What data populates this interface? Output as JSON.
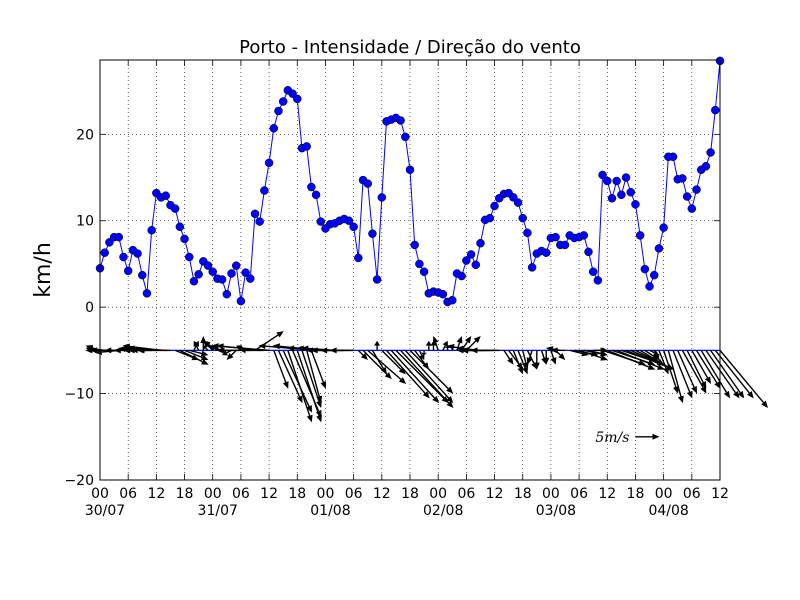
{
  "chart_data": {
    "type": "line",
    "title": "Porto - Intensidade / Direção do vento",
    "y_label": "km/h",
    "xlim": [
      0,
      132
    ],
    "ylim": [
      -20,
      28.6
    ],
    "yticks": [
      {
        "value": -20,
        "label": "−20"
      },
      {
        "value": -10,
        "label": "−10"
      },
      0,
      10,
      20
    ],
    "xticks": [
      {
        "value": 0,
        "label": "00"
      },
      {
        "value": 6,
        "label": "06"
      },
      {
        "value": 12,
        "label": "12"
      },
      {
        "value": 18,
        "label": "18"
      },
      {
        "value": 24,
        "label": "00"
      },
      {
        "value": 30,
        "label": "06"
      },
      {
        "value": 36,
        "label": "12"
      },
      {
        "value": 42,
        "label": "18"
      },
      {
        "value": 48,
        "label": "00"
      },
      {
        "value": 54,
        "label": "06"
      },
      {
        "value": 60,
        "label": "12"
      },
      {
        "value": 66,
        "label": "18"
      },
      {
        "value": 72,
        "label": "00"
      },
      {
        "value": 78,
        "label": "06"
      },
      {
        "value": 84,
        "label": "12"
      },
      {
        "value": 90,
        "label": "18"
      },
      {
        "value": 96,
        "label": "00"
      },
      {
        "value": 102,
        "label": "06"
      },
      {
        "value": 108,
        "label": "12"
      },
      {
        "value": 114,
        "label": "18"
      },
      {
        "value": 120,
        "label": "00"
      },
      {
        "value": 126,
        "label": "06"
      },
      {
        "value": 132,
        "label": "12"
      }
    ],
    "xtick_dates": [
      {
        "value": 0,
        "label": "30/07"
      },
      {
        "value": 24,
        "label": "31/07"
      },
      {
        "value": 48,
        "label": "01/08"
      },
      {
        "value": 72,
        "label": "02/08"
      },
      {
        "value": 96,
        "label": "03/08"
      },
      {
        "value": 120,
        "label": "04/08"
      }
    ],
    "grid": true,
    "series": [
      {
        "name": "Intensidade",
        "color": "#0000ff",
        "x": [
          0,
          1,
          2,
          3,
          4,
          5,
          6,
          7,
          8,
          9,
          10,
          11,
          12,
          13,
          14,
          15,
          16,
          17,
          18,
          19,
          20,
          21,
          22,
          23,
          24,
          25,
          26,
          27,
          28,
          29,
          30,
          31,
          32,
          33,
          34,
          35,
          36,
          37,
          38,
          39,
          40,
          41,
          42,
          43,
          44,
          45,
          46,
          47,
          48,
          49,
          50,
          51,
          52,
          53,
          54,
          55,
          56,
          57,
          58,
          59,
          60,
          61,
          62,
          63,
          64,
          65,
          66,
          67,
          68,
          69,
          70,
          71,
          72,
          73,
          74,
          75,
          76,
          77,
          78,
          79,
          80,
          81,
          82,
          83,
          84,
          85,
          86,
          87,
          88,
          89,
          90,
          91,
          92,
          93,
          94,
          95,
          96,
          97,
          98,
          99,
          100,
          101,
          102,
          103,
          104,
          105,
          106,
          107,
          108,
          109,
          110,
          111,
          112,
          113,
          114,
          115,
          116,
          117,
          118,
          119,
          120,
          121,
          122,
          123,
          124,
          125,
          126,
          127,
          128,
          129,
          130,
          131,
          132
        ],
        "values": [
          4.5,
          6.3,
          7.5,
          8.1,
          8.1,
          5.8,
          4.2,
          6.6,
          6.2,
          3.7,
          1.6,
          8.9,
          13.2,
          12.7,
          12.9,
          11.8,
          11.4,
          9.3,
          7.9,
          5.8,
          3.0,
          3.8,
          5.3,
          4.8,
          4.1,
          3.3,
          3.2,
          1.5,
          3.9,
          4.8,
          0.7,
          4.0,
          3.3,
          10.8,
          9.9,
          13.5,
          16.7,
          20.7,
          22.7,
          23.8,
          25.1,
          24.7,
          24.1,
          18.4,
          18.6,
          13.9,
          13.0,
          9.9,
          9.1,
          9.6,
          9.7,
          10.0,
          10.2,
          10.0,
          9.3,
          5.7,
          14.7,
          14.3,
          8.5,
          3.2,
          12.7,
          21.5,
          21.7,
          21.9,
          21.6,
          19.7,
          15.9,
          7.2,
          5.0,
          4.1,
          1.6,
          1.8,
          1.7,
          1.5,
          0.6,
          0.8,
          3.9,
          3.6,
          5.4,
          6.1,
          4.9,
          7.4,
          10.1,
          10.3,
          11.7,
          12.6,
          13.1,
          13.2,
          12.7,
          12.1,
          10.3,
          8.6,
          4.6,
          6.2,
          6.5,
          6.3,
          8.0,
          8.1,
          7.2,
          7.2,
          8.3,
          8.0,
          8.1,
          8.3,
          6.4,
          4.1,
          3.1,
          15.3,
          14.6,
          12.6,
          14.6,
          13.0,
          15.0,
          13.3,
          11.9,
          8.3,
          4.4,
          2.4,
          3.7,
          6.8,
          9.2,
          17.4,
          17.4,
          14.8,
          14.9,
          12.8,
          11.4,
          13.6,
          15.9,
          16.3,
          17.9,
          22.8,
          28.5
        ]
      }
    ],
    "wind": {
      "type": "quiver",
      "base": -5,
      "color": "#000000",
      "baseline_color": "#0000ff",
      "u": [
        -3,
        -4,
        -5,
        -5,
        -5,
        -4,
        -3,
        -3,
        -3,
        -2,
        -1,
        -5,
        -7,
        -8,
        -8,
        -7,
        5,
        6,
        5,
        4,
        1,
        -1,
        0,
        -1,
        -2,
        -3,
        -3,
        -1,
        -2,
        -2,
        0,
        -2,
        -2,
        6,
        -9,
        -10,
        -12,
        3,
        5,
        6,
        5,
        6,
        5,
        4,
        3,
        3,
        -12,
        -10,
        -8,
        -7,
        -7,
        -7,
        -7,
        -6,
        -5,
        2,
        6,
        8,
        3,
        0,
        5,
        9,
        10,
        11,
        11,
        10,
        9,
        3,
        1,
        0,
        0,
        0,
        -1,
        1,
        0,
        0,
        1,
        2,
        3,
        -5,
        -4,
        -5,
        -5,
        -6,
        -7,
        -6,
        2,
        3,
        2,
        2,
        1,
        2,
        -1,
        0,
        1,
        0,
        1,
        2,
        -3,
        -3,
        4,
        5,
        6,
        5,
        4,
        3,
        2,
        9,
        10,
        9,
        10,
        9,
        10,
        9,
        8,
        5,
        3,
        2,
        1,
        2,
        3,
        3,
        4,
        4,
        5,
        4,
        4,
        5,
        6,
        7,
        7,
        8,
        10
      ],
      "v": [
        1,
        0.5,
        0,
        0,
        -0.5,
        0,
        0,
        0.5,
        0,
        0,
        0,
        0,
        0.5,
        1,
        0.5,
        0,
        -2,
        -3,
        -2,
        -1,
        2,
        2,
        3,
        1,
        2,
        2,
        1,
        0,
        -1,
        -2,
        1,
        1,
        0,
        4,
        1,
        0,
        1,
        -8,
        -11,
        -13,
        -15,
        -14,
        -15,
        -12,
        -11,
        -8,
        1,
        1,
        0.5,
        0.5,
        0.5,
        0,
        0,
        0,
        0,
        -2,
        -6,
        -7,
        -5,
        2,
        -5,
        -10,
        -11,
        -11,
        -12,
        -11,
        -9,
        -4,
        -2,
        -1,
        2,
        2,
        3,
        2,
        1,
        1,
        3,
        3,
        3,
        1,
        0,
        0.5,
        0,
        0,
        0,
        0,
        -3,
        -4,
        -5,
        -5,
        -4,
        -4,
        -3,
        -4,
        -3,
        -3,
        -3,
        -2,
        0.5,
        0,
        -1,
        -1,
        -2,
        -1,
        -1,
        0,
        0,
        -3,
        -4,
        -3,
        -4,
        -3,
        -4,
        -4,
        -4,
        -3,
        -2,
        -1,
        -2,
        -5,
        -9,
        -11,
        -10,
        -9,
        -9,
        -8,
        -7,
        -8,
        -10,
        -10,
        -10,
        -10,
        -12
      ],
      "key_value": 5,
      "key_label": "5m/s",
      "key_x": 114,
      "key_y": -15
    }
  }
}
